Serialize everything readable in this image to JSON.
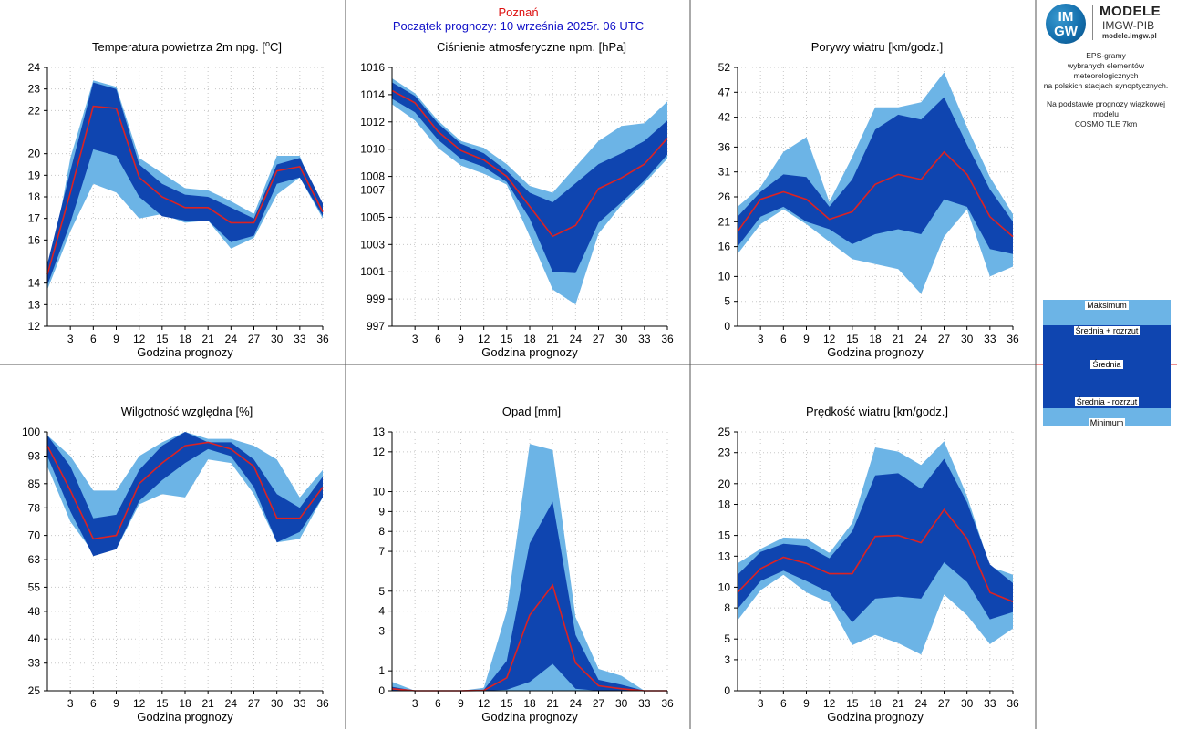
{
  "header": {
    "station": "Poznań",
    "forecast_start": "Początek prognozy: 10 września 2025r. 06 UTC"
  },
  "logo": {
    "line1": "IM",
    "line2": "GW",
    "title": "MODELE",
    "subtitle": "IMGW-PIB",
    "url": "modele.imgw.pl"
  },
  "info": {
    "line1": "EPS-gramy",
    "line2": "wybranych elementów meteorologicznych",
    "line3": "na polskich stacjach  synoptycznych.",
    "line4": "Na podstawie prognozy wiązkowej modelu",
    "line5": "COSMO TLE 7km"
  },
  "legend": {
    "max": "Maksimum",
    "mean_plus": "Średnia + rozrzut",
    "mean": "Średnia",
    "mean_minus": "Średnia - rozrzut",
    "min": "Minimum"
  },
  "colors": {
    "outer_band": "#6cb4e6",
    "inner_band": "#0f45b0",
    "mean_line": "#dd2222",
    "grid": "#c8c8c8"
  },
  "chart_data": [
    {
      "type": "area",
      "title_main": "Temperatura powietrza 2m npg. [",
      "title_sup": "o",
      "title_end": "C]",
      "xlabel": "Godzina prognozy",
      "x": [
        0,
        3,
        6,
        9,
        12,
        15,
        18,
        21,
        24,
        27,
        30,
        33,
        36
      ],
      "xticks": [
        3,
        6,
        9,
        12,
        15,
        18,
        21,
        24,
        27,
        30,
        33,
        36
      ],
      "ylim": [
        12,
        24
      ],
      "yticks": [
        12,
        13,
        14,
        16,
        17,
        18,
        19,
        20,
        22,
        23,
        24
      ],
      "max": [
        13.9,
        19.8,
        23.4,
        23.1,
        19.8,
        19.1,
        18.4,
        18.3,
        17.8,
        17.2,
        19.9,
        19.9,
        17.2
      ],
      "mean_plus": [
        14.9,
        19.2,
        23.3,
        23.0,
        19.5,
        18.6,
        18.1,
        18.0,
        17.5,
        17.0,
        19.5,
        19.8,
        17.7
      ],
      "mean": [
        14.4,
        18.2,
        22.2,
        22.1,
        18.9,
        18.0,
        17.5,
        17.5,
        16.8,
        16.8,
        19.2,
        19.4,
        17.3
      ],
      "mean_minus": [
        13.9,
        16.8,
        20.2,
        19.9,
        18.0,
        17.1,
        16.9,
        16.9,
        15.9,
        16.2,
        18.6,
        18.9,
        17.1
      ],
      "min": [
        13.7,
        16.4,
        18.6,
        18.2,
        17.0,
        17.2,
        16.8,
        16.9,
        15.6,
        16.1,
        18.1,
        18.9,
        17.0
      ]
    },
    {
      "type": "area",
      "title_main": "Ciśnienie atmosferyczne npm. [hPa]",
      "xlabel": "Godzina prognozy",
      "x": [
        0,
        3,
        6,
        9,
        12,
        15,
        18,
        21,
        24,
        27,
        30,
        33,
        36
      ],
      "xticks": [
        3,
        6,
        9,
        12,
        15,
        18,
        21,
        24,
        27,
        30,
        33,
        36
      ],
      "ylim": [
        997,
        1016
      ],
      "yticks": [
        997,
        999,
        1001,
        1003,
        1005,
        1007,
        1008,
        1010,
        1012,
        1014,
        1016
      ],
      "max": [
        1015.2,
        1014.1,
        1012.1,
        1010.6,
        1010.1,
        1008.9,
        1007.3,
        1006.8,
        1008.7,
        1010.6,
        1011.7,
        1011.9,
        1013.5
      ],
      "mean_plus": [
        1014.9,
        1013.9,
        1011.9,
        1010.4,
        1009.7,
        1008.4,
        1006.8,
        1006.1,
        1007.5,
        1008.9,
        1009.7,
        1010.6,
        1012.1
      ],
      "mean": [
        1014.3,
        1013.4,
        1011.3,
        1009.9,
        1009.2,
        1008.0,
        1005.8,
        1003.6,
        1004.4,
        1007.1,
        1007.9,
        1008.9,
        1010.8
      ],
      "mean_minus": [
        1013.7,
        1012.7,
        1010.7,
        1009.3,
        1008.7,
        1007.6,
        1004.9,
        1001.0,
        1000.9,
        1004.6,
        1006.1,
        1007.7,
        1009.6
      ],
      "min": [
        1013.3,
        1012.1,
        1010.1,
        1008.8,
        1008.2,
        1007.4,
        1003.6,
        999.7,
        998.6,
        1003.8,
        1005.9,
        1007.5,
        1009.3
      ]
    },
    {
      "type": "area",
      "title_main": "Porywy wiatru [km/godz.]",
      "xlabel": "Godzina prognozy",
      "x": [
        0,
        3,
        6,
        9,
        12,
        15,
        18,
        21,
        24,
        27,
        30,
        33,
        36
      ],
      "xticks": [
        3,
        6,
        9,
        12,
        15,
        18,
        21,
        24,
        27,
        30,
        33,
        36
      ],
      "ylim": [
        0,
        52
      ],
      "yticks": [
        0,
        5,
        10,
        16,
        21,
        26,
        31,
        36,
        42,
        47,
        52
      ],
      "max": [
        24.0,
        28.0,
        35.0,
        38.0,
        25.0,
        34.0,
        44.0,
        44.0,
        45.0,
        51.0,
        40.0,
        30.0,
        22.5
      ],
      "mean_plus": [
        22.0,
        27.0,
        30.5,
        30.0,
        24.0,
        29.5,
        39.5,
        42.5,
        41.5,
        46.0,
        36.5,
        27.5,
        21.0
      ],
      "mean": [
        19.0,
        25.5,
        27.0,
        25.5,
        21.5,
        23.0,
        28.5,
        30.5,
        29.5,
        35.0,
        30.5,
        22.0,
        18.0
      ],
      "mean_minus": [
        16.0,
        22.0,
        24.0,
        21.0,
        19.5,
        16.5,
        18.5,
        19.5,
        18.5,
        25.5,
        24.0,
        15.5,
        14.5
      ],
      "min": [
        14.5,
        20.5,
        23.5,
        20.5,
        17.0,
        13.5,
        12.5,
        11.5,
        6.5,
        18.0,
        23.5,
        10.0,
        12.0
      ]
    },
    {
      "type": "area",
      "title_main": "Wilgotność względna [%]",
      "xlabel": "Godzina prognozy",
      "x": [
        0,
        3,
        6,
        9,
        12,
        15,
        18,
        21,
        24,
        27,
        30,
        33,
        36
      ],
      "xticks": [
        3,
        6,
        9,
        12,
        15,
        18,
        21,
        24,
        27,
        30,
        33,
        36
      ],
      "ylim": [
        25,
        100
      ],
      "yticks": [
        25,
        33,
        40,
        48,
        55,
        63,
        70,
        78,
        85,
        93,
        100
      ],
      "max": [
        99,
        93,
        83,
        83,
        93,
        97,
        100,
        98,
        98,
        96,
        92,
        81,
        89
      ],
      "mean_plus": [
        99,
        90,
        75,
        76,
        89,
        96,
        100,
        97,
        97,
        92,
        82,
        78,
        87
      ],
      "mean": [
        96,
        83,
        69,
        70,
        85,
        91,
        96,
        97,
        95,
        90,
        75,
        75,
        84
      ],
      "mean_minus": [
        93,
        77,
        64,
        66,
        80,
        86,
        91,
        95,
        93,
        84,
        68,
        71,
        81
      ],
      "min": [
        90,
        74,
        65,
        66,
        79,
        82,
        81,
        92,
        91,
        82,
        68,
        69,
        81
      ]
    },
    {
      "type": "area",
      "title_main": "Opad [mm]",
      "xlabel": "Godzina prognozy",
      "x": [
        0,
        3,
        6,
        9,
        12,
        15,
        18,
        21,
        24,
        27,
        30,
        33,
        36
      ],
      "xticks": [
        3,
        6,
        9,
        12,
        15,
        18,
        21,
        24,
        27,
        30,
        33,
        36
      ],
      "ylim": [
        0,
        13
      ],
      "yticks": [
        0,
        1,
        3,
        4,
        5,
        7,
        8,
        9,
        10,
        12,
        13
      ],
      "max": [
        0.45,
        0.0,
        0.0,
        0.0,
        0.15,
        4.0,
        12.4,
        12.1,
        3.7,
        1.1,
        0.75,
        0.0,
        0.0
      ],
      "mean_plus": [
        0.2,
        0.0,
        0.0,
        0.0,
        0.05,
        1.5,
        7.4,
        9.5,
        2.8,
        0.55,
        0.3,
        0.0,
        0.0
      ],
      "mean": [
        0.1,
        0.0,
        0.0,
        0.0,
        0.02,
        0.65,
        3.8,
        5.3,
        1.4,
        0.25,
        0.1,
        0.0,
        0.0
      ],
      "mean_minus": [
        0.0,
        0.0,
        0.0,
        0.0,
        0.0,
        0.05,
        0.45,
        1.35,
        0.1,
        0.0,
        0.0,
        0.0,
        0.0
      ],
      "min": [
        0.0,
        0.0,
        0.0,
        0.0,
        0.0,
        0.0,
        0.0,
        0.0,
        0.0,
        0.0,
        0.0,
        0.0,
        0.0
      ]
    },
    {
      "type": "area",
      "title_main": "Prędkość wiatru [km/godz.]",
      "xlabel": "Godzina prognozy",
      "x": [
        0,
        3,
        6,
        9,
        12,
        15,
        18,
        21,
        24,
        27,
        30,
        33,
        36
      ],
      "xticks": [
        3,
        6,
        9,
        12,
        15,
        18,
        21,
        24,
        27,
        30,
        33,
        36
      ],
      "ylim": [
        0,
        25
      ],
      "yticks": [
        0,
        3,
        5,
        8,
        10,
        13,
        15,
        18,
        20,
        23,
        25
      ],
      "max": [
        12.3,
        13.7,
        14.8,
        14.7,
        13.3,
        16.2,
        23.5,
        23.1,
        21.8,
        24.1,
        18.8,
        12.0,
        11.2
      ],
      "mean_plus": [
        11.2,
        13.4,
        14.2,
        14.0,
        12.8,
        15.4,
        20.8,
        21.0,
        19.5,
        22.4,
        18.2,
        12.2,
        10.4
      ],
      "mean": [
        9.5,
        11.8,
        12.9,
        12.3,
        11.3,
        11.3,
        14.9,
        15.0,
        14.3,
        17.5,
        14.7,
        9.5,
        8.6
      ],
      "mean_minus": [
        7.9,
        10.6,
        11.6,
        10.6,
        9.5,
        6.6,
        8.9,
        9.1,
        8.9,
        12.4,
        10.5,
        6.9,
        7.6
      ],
      "min": [
        6.8,
        9.7,
        11.2,
        9.5,
        8.5,
        4.4,
        5.4,
        4.6,
        3.5,
        9.3,
        7.3,
        4.5,
        6.0
      ]
    }
  ]
}
